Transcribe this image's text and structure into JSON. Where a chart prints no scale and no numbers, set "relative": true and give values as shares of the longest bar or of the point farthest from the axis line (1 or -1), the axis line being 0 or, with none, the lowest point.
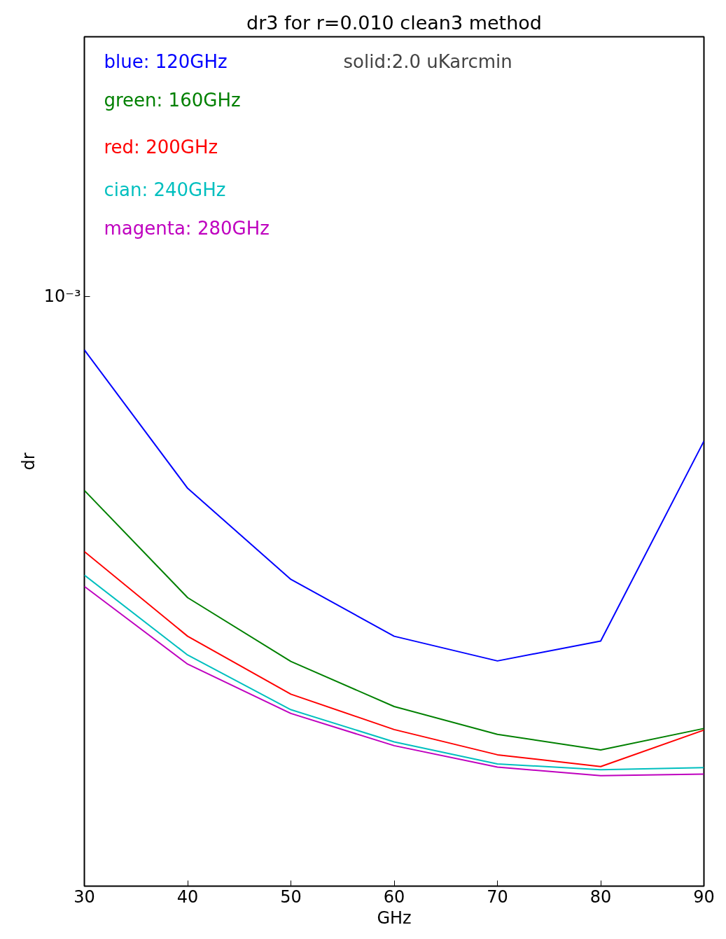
{
  "chart_data": {
    "type": "line",
    "title": "dr3 for r=0.010 clean3 method",
    "xlabel": "GHz",
    "ylabel": "dr",
    "relative": true,
    "x": [
      30,
      40,
      50,
      60,
      70,
      80,
      90
    ],
    "series": [
      {
        "name": "blue:   120GHz",
        "color": "#0000ff",
        "values": [
          1,
          0.742,
          0.572,
          0.466,
          0.42,
          0.457,
          0.83
        ]
      },
      {
        "name": "green:  160GHz",
        "color": "#008000",
        "values": [
          0.738,
          0.538,
          0.419,
          0.335,
          0.283,
          0.254,
          0.294
        ]
      },
      {
        "name": "red:    200GHz",
        "color": "#ff0000",
        "values": [
          0.624,
          0.466,
          0.358,
          0.292,
          0.245,
          0.223,
          0.291
        ]
      },
      {
        "name": "cian:   240GHz",
        "color": "#00bfbf",
        "values": [
          0.58,
          0.431,
          0.329,
          0.269,
          0.228,
          0.217,
          0.221
        ]
      },
      {
        "name": "magenta: 280GHz",
        "color": "#bf00bf",
        "values": [
          0.559,
          0.414,
          0.322,
          0.262,
          0.222,
          0.206,
          0.209
        ]
      }
    ],
    "annotations": [
      "solid:2.0 uKarcmin",
      "10⁻³"
    ],
    "xlim": [
      30,
      90
    ],
    "xticks": [
      30,
      40,
      50,
      60,
      70,
      80,
      90
    ],
    "grid": false,
    "legend": "top left",
    "line_style": "solid",
    "marker": "none"
  }
}
